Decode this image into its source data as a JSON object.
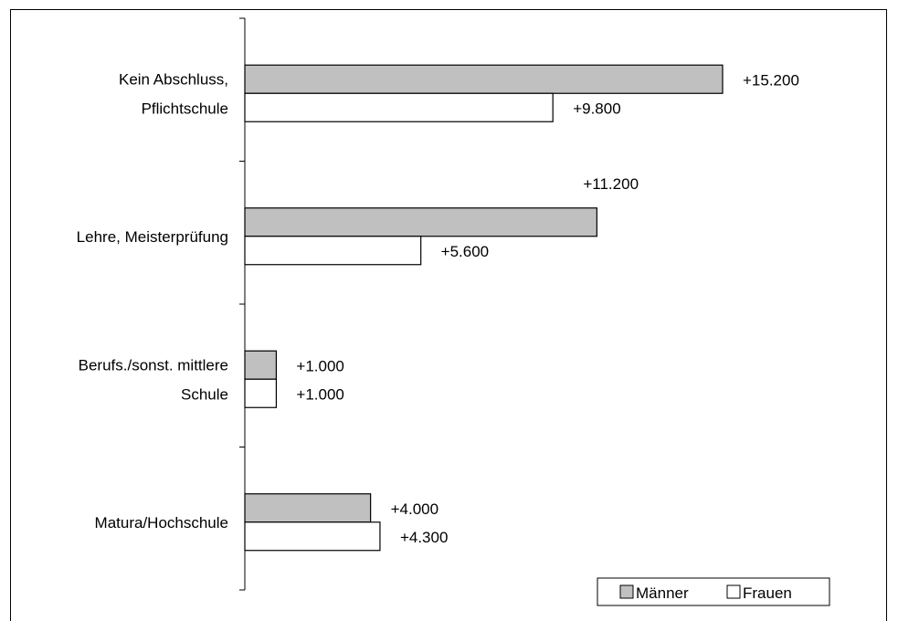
{
  "chart_data": {
    "type": "bar",
    "orientation": "horizontal",
    "categories": [
      [
        "Kein Abschluss,",
        "Pflichtschule"
      ],
      [
        "Lehre, Meisterprüfung"
      ],
      [
        "Berufs./sonst. mittlere",
        "Schule"
      ],
      [
        "Matura/Hochschule"
      ]
    ],
    "series": [
      {
        "name": "Männer",
        "color": "#c0c0c0",
        "values": [
          15200,
          11200,
          1000,
          4000
        ],
        "labels": [
          "+15.200",
          "+11.200",
          "+1.000",
          "+4.000"
        ]
      },
      {
        "name": "Frauen",
        "color": "#ffffff",
        "values": [
          9800,
          5600,
          1000,
          4300
        ],
        "labels": [
          "+9.800",
          "+5.600",
          "+1.000",
          "+4.300"
        ]
      }
    ],
    "xlim": [
      0,
      20000
    ],
    "grid": false,
    "legend_position": "bottom-right",
    "title": "",
    "xlabel": "",
    "ylabel": ""
  }
}
